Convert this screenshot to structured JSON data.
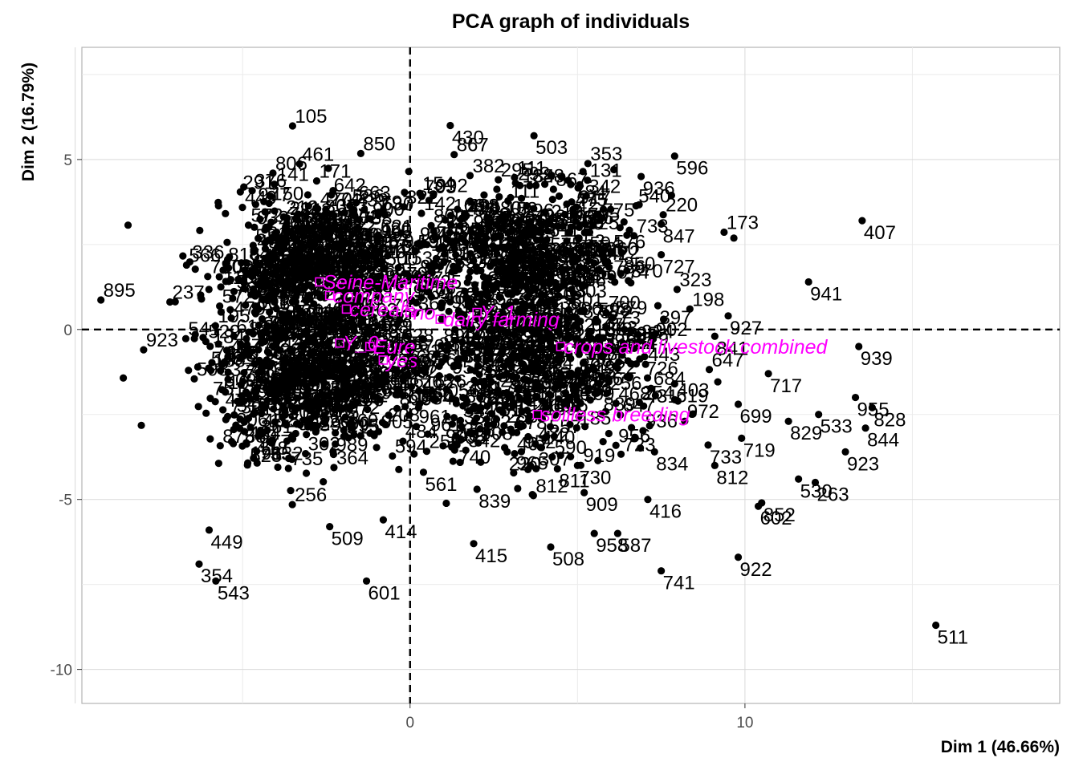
{
  "chart_data": {
    "type": "scatter",
    "title": "PCA graph of individuals",
    "xlabel": "Dim 1 (46.66%)",
    "ylabel": "Dim 2 (16.79%)",
    "xlim": [
      -9.8,
      19.4
    ],
    "ylim": [
      -11.0,
      8.3
    ],
    "xticks": [
      0,
      10
    ],
    "yticks": [
      5,
      0,
      -5,
      -10
    ],
    "grid": true,
    "reference_lines": {
      "x": 0,
      "y": 0,
      "style": "dashed"
    },
    "colors": {
      "points": "#000000",
      "supplementary": "#ff00ff",
      "grid": "#d9d9d9",
      "border": "#b3b3b3"
    },
    "labeled_points": [
      {
        "label": "596",
        "x": 7.9,
        "y": 5.1
      },
      {
        "label": "407",
        "x": 13.5,
        "y": 3.2
      },
      {
        "label": "941",
        "x": 11.9,
        "y": 1.4
      },
      {
        "label": "927",
        "x": 9.5,
        "y": 0.4
      },
      {
        "label": "939",
        "x": 13.4,
        "y": -0.5
      },
      {
        "label": "717",
        "x": 10.7,
        "y": -1.3
      },
      {
        "label": "955",
        "x": 13.3,
        "y": -2.0
      },
      {
        "label": "828",
        "x": 13.8,
        "y": -2.3
      },
      {
        "label": "844",
        "x": 13.6,
        "y": -2.9
      },
      {
        "label": "533",
        "x": 12.2,
        "y": -2.5
      },
      {
        "label": "829",
        "x": 11.3,
        "y": -2.7
      },
      {
        "label": "923",
        "x": 13.0,
        "y": -3.6
      },
      {
        "label": "530",
        "x": 11.6,
        "y": -4.4
      },
      {
        "label": "263",
        "x": 12.1,
        "y": -4.5
      },
      {
        "label": "852",
        "x": 10.5,
        "y": -5.1
      },
      {
        "label": "602",
        "x": 10.4,
        "y": -5.2
      },
      {
        "label": "922",
        "x": 9.8,
        "y": -6.7
      },
      {
        "label": "511",
        "x": 15.7,
        "y": -8.7
      },
      {
        "label": "741",
        "x": 7.5,
        "y": -7.1
      },
      {
        "label": "587",
        "x": 6.2,
        "y": -6.0
      },
      {
        "label": "958",
        "x": 5.5,
        "y": -6.0
      },
      {
        "label": "508",
        "x": 4.2,
        "y": -6.4
      },
      {
        "label": "415",
        "x": 1.9,
        "y": -6.3
      },
      {
        "label": "416",
        "x": 7.1,
        "y": -5.0
      },
      {
        "label": "909",
        "x": 5.2,
        "y": -4.8
      },
      {
        "label": "839",
        "x": 2.0,
        "y": -4.7
      },
      {
        "label": "561",
        "x": 0.4,
        "y": -4.2
      },
      {
        "label": "414",
        "x": -0.8,
        "y": -5.6
      },
      {
        "label": "509",
        "x": -2.4,
        "y": -5.8
      },
      {
        "label": "601",
        "x": -1.3,
        "y": -7.4
      },
      {
        "label": "449",
        "x": -6.0,
        "y": -5.9
      },
      {
        "label": "354",
        "x": -6.3,
        "y": -6.9
      },
      {
        "label": "543",
        "x": -5.8,
        "y": -7.4
      },
      {
        "label": "632",
        "x": -4.2,
        "y": -3.3
      },
      {
        "label": "430",
        "x": 1.2,
        "y": 6.0
      },
      {
        "label": "503",
        "x": 3.7,
        "y": 5.7
      },
      {
        "label": "936",
        "x": 6.9,
        "y": 4.5
      },
      {
        "label": "847",
        "x": 7.5,
        "y": 3.1
      },
      {
        "label": "727",
        "x": 7.5,
        "y": 2.2
      },
      {
        "label": "397",
        "x": 7.4,
        "y": 0.7
      },
      {
        "label": "841",
        "x": 9.1,
        "y": -0.2
      },
      {
        "label": "812",
        "x": 9.1,
        "y": -4.0
      },
      {
        "label": "733",
        "x": 8.9,
        "y": -3.4
      },
      {
        "label": "719",
        "x": 9.9,
        "y": -3.2
      },
      {
        "label": "699",
        "x": 9.8,
        "y": -2.2
      },
      {
        "label": "834",
        "x": 7.3,
        "y": -3.6
      },
      {
        "label": "730",
        "x": 5.0,
        "y": -4.0
      },
      {
        "label": "811",
        "x": 4.4,
        "y": -4.1
      },
      {
        "label": "740",
        "x": 1.4,
        "y": -3.4
      },
      {
        "label": "220",
        "x": 2.9,
        "y": -3.6
      },
      {
        "label": "619",
        "x": 7.9,
        "y": -1.6
      },
      {
        "label": "726",
        "x": 7.0,
        "y": -0.8
      },
      {
        "label": "937",
        "x": 6.4,
        "y": 0.0
      }
    ],
    "supplementary_categories": [
      {
        "label": "Seine-Maritime",
        "x": -2.7,
        "y": 1.4
      },
      {
        "label": "company",
        "x": -2.4,
        "y": 1.0
      },
      {
        "label": "cereals",
        "x": -1.9,
        "y": 0.6
      },
      {
        "label": "no",
        "x": 0.0,
        "y": 0.5
      },
      {
        "label": "Y_1",
        "x": 2.0,
        "y": 0.5
      },
      {
        "label": "dairy farming",
        "x": 0.9,
        "y": 0.3
      },
      {
        "label": "Y_0",
        "x": -2.1,
        "y": -0.4
      },
      {
        "label": "Eure",
        "x": -1.2,
        "y": -0.5
      },
      {
        "label": "yes",
        "x": -0.8,
        "y": -0.9
      },
      {
        "label": "crops and livestock combined",
        "x": 4.5,
        "y": -0.5
      },
      {
        "label": "soilless breeding",
        "x": 3.8,
        "y": -2.5
      }
    ]
  }
}
